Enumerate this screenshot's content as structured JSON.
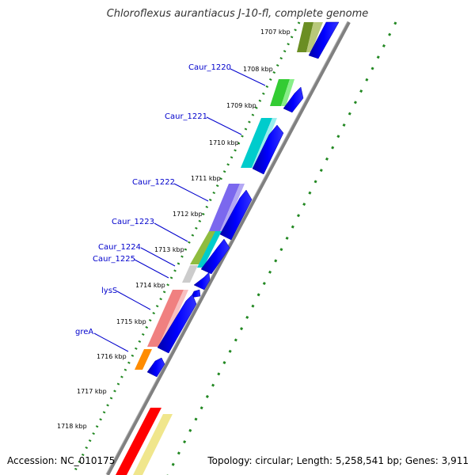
{
  "title": "Chloroflexus aurantiacus J-10-fl, complete genome",
  "footer": {
    "accession": "Accession: NC_010175",
    "stats": "Topology: circular; Length: 5,258,541 bp; Genes: 3,911"
  },
  "colors": {
    "gene_label": "#0000cc",
    "backbone": "#808080",
    "tick_dots": "#228822",
    "cds": "#0000ff"
  },
  "kbp_labels": [
    "1707 kbp",
    "1708 kbp",
    "1709 kbp",
    "1710 kbp",
    "1711 kbp",
    "1712 kbp",
    "1713 kbp",
    "1714 kbp",
    "1715 kbp",
    "1716 kbp",
    "1717 kbp",
    "1718 kbp"
  ],
  "gene_labels": [
    "Caur_1220",
    "Caur_1221",
    "Caur_1222",
    "Caur_1223",
    "Caur_1224",
    "Caur_1225",
    "lysS",
    "greA"
  ],
  "feature_colors": [
    "#6b8e23",
    "#33cc33",
    "#00cccc",
    "#7b68ee",
    "#8fbc3f",
    "#00cccc",
    "#cccccc",
    "#f08080",
    "#ff8c00",
    "#ff0000",
    "#f0e68c"
  ]
}
